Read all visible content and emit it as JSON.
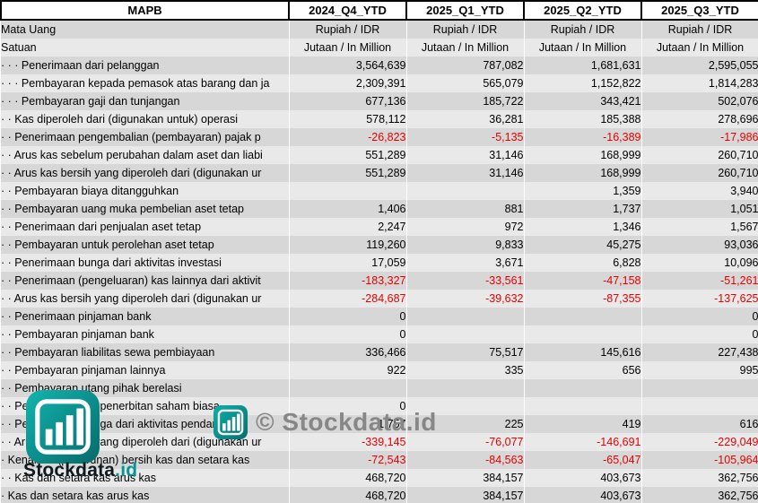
{
  "table": {
    "header": {
      "columns": [
        "MAPB",
        "2024_Q4_YTD",
        "2025_Q1_YTD",
        "2025_Q2_YTD",
        "2025_Q3_YTD"
      ]
    },
    "rows": [
      {
        "type": "meta",
        "label": "Mata Uang",
        "values": [
          "Rupiah / IDR",
          "Rupiah / IDR",
          "Rupiah / IDR",
          "Rupiah / IDR"
        ]
      },
      {
        "type": "meta",
        "label": "Satuan",
        "values": [
          "Jutaan / In Million",
          "Jutaan / In Million",
          "Jutaan / In Million",
          "Jutaan / In Million"
        ]
      },
      {
        "type": "data",
        "label": "· · · Penerimaan dari pelanggan",
        "values": [
          "3,564,639",
          "787,082",
          "1,681,631",
          "2,595,055"
        ]
      },
      {
        "type": "data",
        "label": "· · · Pembayaran kepada pemasok atas barang dan ja",
        "values": [
          "2,309,391",
          "565,079",
          "1,152,822",
          "1,814,283"
        ]
      },
      {
        "type": "data",
        "label": "· · · Pembayaran gaji dan tunjangan",
        "values": [
          "677,136",
          "185,722",
          "343,421",
          "502,076"
        ]
      },
      {
        "type": "data",
        "label": "· · Kas diperoleh dari (digunakan untuk) operasi",
        "values": [
          "578,112",
          "36,281",
          "185,388",
          "278,696"
        ]
      },
      {
        "type": "data",
        "label": "· · Penerimaan pengembalian (pembayaran) pajak p",
        "values": [
          "-26,823",
          "-5,135",
          "-16,389",
          "-17,986"
        ]
      },
      {
        "type": "data",
        "label": "· · Arus kas sebelum perubahan dalam aset dan liabi",
        "values": [
          "551,289",
          "31,146",
          "168,999",
          "260,710"
        ]
      },
      {
        "type": "data",
        "label": "· · Arus kas bersih yang diperoleh dari (digunakan ur",
        "values": [
          "551,289",
          "31,146",
          "168,999",
          "260,710"
        ]
      },
      {
        "type": "data",
        "label": "· · Pembayaran biaya ditangguhkan",
        "values": [
          "",
          "",
          "1,359",
          "3,940"
        ]
      },
      {
        "type": "data",
        "label": "· · Pembayaran uang muka pembelian aset tetap",
        "values": [
          "1,406",
          "881",
          "1,737",
          "1,051"
        ]
      },
      {
        "type": "data",
        "label": "· · Penerimaan dari penjualan aset tetap",
        "values": [
          "2,247",
          "972",
          "1,346",
          "1,567"
        ]
      },
      {
        "type": "data",
        "label": "· · Pembayaran untuk perolehan aset tetap",
        "values": [
          "119,260",
          "9,833",
          "45,275",
          "93,036"
        ]
      },
      {
        "type": "data",
        "label": "· · Penerimaan bunga dari aktivitas investasi",
        "values": [
          "17,059",
          "3,671",
          "6,828",
          "10,096"
        ]
      },
      {
        "type": "data",
        "label": "· · Penerimaan (pengeluaran) kas lainnya dari aktivit",
        "values": [
          "-183,327",
          "-33,561",
          "-47,158",
          "-51,261"
        ]
      },
      {
        "type": "data",
        "label": "· · Arus kas bersih yang diperoleh dari (digunakan ur",
        "values": [
          "-284,687",
          "-39,632",
          "-87,355",
          "-137,625"
        ]
      },
      {
        "type": "data",
        "label": "· · Penerimaan pinjaman bank",
        "values": [
          "0",
          "",
          "",
          "0"
        ]
      },
      {
        "type": "data",
        "label": "· · Pembayaran pinjaman bank",
        "values": [
          "0",
          "",
          "",
          "0"
        ]
      },
      {
        "type": "data",
        "label": "· · Pembayaran liabilitas sewa pembiayaan",
        "values": [
          "336,466",
          "75,517",
          "145,616",
          "227,438"
        ]
      },
      {
        "type": "data",
        "label": "· · Pembayaran pinjaman lainnya",
        "values": [
          "922",
          "335",
          "656",
          "995"
        ]
      },
      {
        "type": "data",
        "label": "· · Pembayaran utang pihak berelasi",
        "values": [
          "",
          "",
          "",
          ""
        ]
      },
      {
        "type": "data",
        "label": "· · Penerimaan dari penerbitan saham biasa",
        "values": [
          "0",
          "",
          "",
          ""
        ]
      },
      {
        "type": "data",
        "label": "· · Pembayaran bunga dari aktivitas pendanaan",
        "values": [
          "1,757",
          "225",
          "419",
          "616"
        ]
      },
      {
        "type": "data",
        "label": "· · Arus kas bersih yang diperoleh dari (digunakan ur",
        "values": [
          "-339,145",
          "-76,077",
          "-146,691",
          "-229,049"
        ]
      },
      {
        "type": "data",
        "label": "· Kenaikan (penurunan) bersih kas dan setara kas",
        "values": [
          "-72,543",
          "-84,563",
          "-65,047",
          "-105,964"
        ]
      },
      {
        "type": "data",
        "label": "· · Kas dan setara kas arus kas",
        "values": [
          "468,720",
          "384,157",
          "403,673",
          "362,756"
        ]
      },
      {
        "type": "data",
        "label": "· Kas dan setara kas arus kas",
        "values": [
          "468,720",
          "384,157",
          "403,673",
          "362,756"
        ]
      }
    ]
  },
  "watermark": {
    "text": "© Stockdata.id"
  },
  "logo": {
    "brand": "Stockdata",
    "tld": ".id"
  },
  "colors": {
    "accent_teal": "#0a9390",
    "negative_text": "#e60000",
    "band_dark": "#d7d7d7",
    "band_light": "#e9e9e9"
  }
}
